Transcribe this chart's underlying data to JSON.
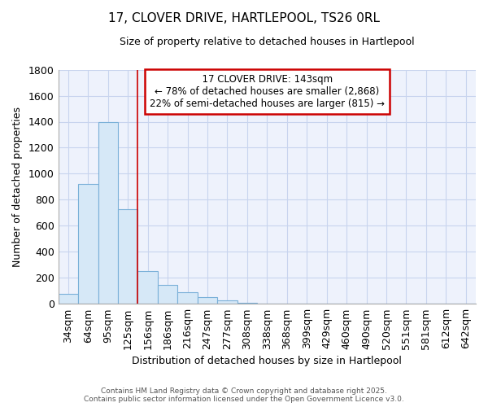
{
  "title1": "17, CLOVER DRIVE, HARTLEPOOL, TS26 0RL",
  "title2": "Size of property relative to detached houses in Hartlepool",
  "xlabel": "Distribution of detached houses by size in Hartlepool",
  "ylabel": "Number of detached properties",
  "bins": [
    "34sqm",
    "64sqm",
    "95sqm",
    "125sqm",
    "156sqm",
    "186sqm",
    "216sqm",
    "247sqm",
    "277sqm",
    "308sqm",
    "338sqm",
    "368sqm",
    "399sqm",
    "429sqm",
    "460sqm",
    "490sqm",
    "520sqm",
    "551sqm",
    "581sqm",
    "612sqm",
    "642sqm"
  ],
  "values": [
    80,
    920,
    1400,
    730,
    250,
    145,
    90,
    52,
    25,
    10,
    5,
    3,
    2,
    1,
    1,
    1,
    0,
    0,
    0,
    0,
    0
  ],
  "bar_color": "#d6e8f7",
  "bar_edge_color": "#7ab0d8",
  "vline_color": "#cc0000",
  "annotation_title": "17 CLOVER DRIVE: 143sqm",
  "annotation_line1": "← 78% of detached houses are smaller (2,868)",
  "annotation_line2": "22% of semi-detached houses are larger (815) →",
  "annotation_box_color": "#ffffff",
  "annotation_box_edge": "#cc0000",
  "ylim": [
    0,
    1800
  ],
  "yticks": [
    0,
    200,
    400,
    600,
    800,
    1000,
    1200,
    1400,
    1600,
    1800
  ],
  "footer1": "Contains HM Land Registry data © Crown copyright and database right 2025.",
  "footer2": "Contains public sector information licensed under the Open Government Licence v3.0.",
  "bg_color": "#ffffff",
  "plot_bg_color": "#eef2fc",
  "grid_color": "#c8d4ee"
}
